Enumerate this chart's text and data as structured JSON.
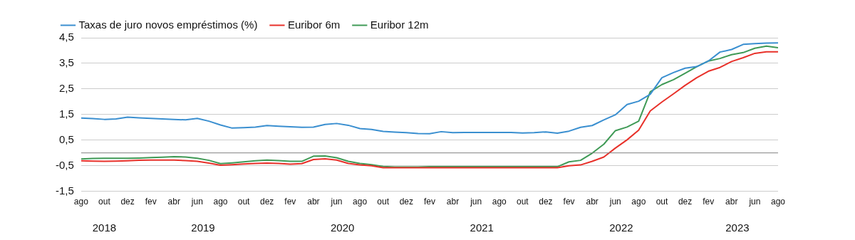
{
  "chart_data": {
    "type": "line",
    "x": [
      "2018-08",
      "2018-09",
      "2018-10",
      "2018-11",
      "2018-12",
      "2019-01",
      "2019-02",
      "2019-03",
      "2019-04",
      "2019-05",
      "2019-06",
      "2019-07",
      "2019-08",
      "2019-09",
      "2019-10",
      "2019-11",
      "2019-12",
      "2020-01",
      "2020-02",
      "2020-03",
      "2020-04",
      "2020-05",
      "2020-06",
      "2020-07",
      "2020-08",
      "2020-09",
      "2020-10",
      "2020-11",
      "2020-12",
      "2021-01",
      "2021-02",
      "2021-03",
      "2021-04",
      "2021-05",
      "2021-06",
      "2021-07",
      "2021-08",
      "2021-09",
      "2021-10",
      "2021-11",
      "2021-12",
      "2022-01",
      "2022-02",
      "2022-03",
      "2022-04",
      "2022-05",
      "2022-06",
      "2022-07",
      "2022-08",
      "2022-09",
      "2022-10",
      "2022-11",
      "2022-12",
      "2023-01",
      "2023-02",
      "2023-03",
      "2023-04",
      "2023-05",
      "2023-06",
      "2023-07",
      "2023-08"
    ],
    "xticks": [
      {
        "value": "2018-08",
        "label": "ago"
      },
      {
        "value": "2018-10",
        "label": "out"
      },
      {
        "value": "2018-12",
        "label": "dez"
      },
      {
        "value": "2019-02",
        "label": "fev"
      },
      {
        "value": "2019-04",
        "label": "abr"
      },
      {
        "value": "2019-06",
        "label": "jun"
      },
      {
        "value": "2019-08",
        "label": "ago"
      },
      {
        "value": "2019-10",
        "label": "out"
      },
      {
        "value": "2019-12",
        "label": "dez"
      },
      {
        "value": "2020-02",
        "label": "fev"
      },
      {
        "value": "2020-04",
        "label": "abr"
      },
      {
        "value": "2020-06",
        "label": "jun"
      },
      {
        "value": "2020-08",
        "label": "ago"
      },
      {
        "value": "2020-10",
        "label": "out"
      },
      {
        "value": "2020-12",
        "label": "dez"
      },
      {
        "value": "2021-02",
        "label": "fev"
      },
      {
        "value": "2021-04",
        "label": "abr"
      },
      {
        "value": "2021-06",
        "label": "jun"
      },
      {
        "value": "2021-08",
        "label": "ago"
      },
      {
        "value": "2021-10",
        "label": "out"
      },
      {
        "value": "2021-12",
        "label": "dez"
      },
      {
        "value": "2022-02",
        "label": "fev"
      },
      {
        "value": "2022-04",
        "label": "abr"
      },
      {
        "value": "2022-06",
        "label": "jun"
      },
      {
        "value": "2022-08",
        "label": "ago"
      },
      {
        "value": "2022-10",
        "label": "out"
      },
      {
        "value": "2022-12",
        "label": "dez"
      },
      {
        "value": "2023-02",
        "label": "fev"
      },
      {
        "value": "2023-04",
        "label": "abr"
      },
      {
        "value": "2023-06",
        "label": "jun"
      },
      {
        "value": "2023-08",
        "label": "ago"
      }
    ],
    "ylim": [
      -1.5,
      4.5
    ],
    "yticks": [
      {
        "value": -1.5,
        "label": "-1,5"
      },
      {
        "value": -0.5,
        "label": "-0,5"
      },
      {
        "value": 0.5,
        "label": "0,5"
      },
      {
        "value": 1.5,
        "label": "1,5"
      },
      {
        "value": 2.5,
        "label": "2,5"
      },
      {
        "value": 3.5,
        "label": "3,5"
      },
      {
        "value": 4.5,
        "label": "4,5"
      }
    ],
    "grid": "y",
    "legend": "top left",
    "marker": "none",
    "line_style": "solid",
    "ref_lines": [
      {
        "axis": "y",
        "value": 0,
        "color": "#808080"
      }
    ],
    "annotations": [
      "2018",
      "2019",
      "2020",
      "2021",
      "2022",
      "2023"
    ],
    "xlim": [
      "2018-08",
      "2023-08"
    ],
    "series": [
      {
        "name": "Taxas de juro novos empréstimos (%)",
        "color": "#3a8fd0",
        "values": [
          1.36,
          1.34,
          1.31,
          1.33,
          1.4,
          1.37,
          1.35,
          1.33,
          1.31,
          1.29,
          1.35,
          1.24,
          1.09,
          0.97,
          0.99,
          1.01,
          1.07,
          1.04,
          1.02,
          1.0,
          1.01,
          1.11,
          1.15,
          1.08,
          0.95,
          0.92,
          0.84,
          0.81,
          0.79,
          0.76,
          0.75,
          0.83,
          0.79,
          0.8,
          0.8,
          0.8,
          0.8,
          0.8,
          0.78,
          0.79,
          0.82,
          0.77,
          0.85,
          1.0,
          1.07,
          1.29,
          1.49,
          1.89,
          2.02,
          2.29,
          2.94,
          3.14,
          3.31,
          3.37,
          3.59,
          3.94,
          4.04,
          4.24,
          4.27,
          4.29,
          4.3
        ]
      },
      {
        "name": "Euribor 6m",
        "color": "#e8312a",
        "values": [
          -0.31,
          -0.32,
          -0.33,
          -0.32,
          -0.31,
          -0.29,
          -0.28,
          -0.28,
          -0.28,
          -0.3,
          -0.33,
          -0.4,
          -0.48,
          -0.46,
          -0.43,
          -0.41,
          -0.4,
          -0.41,
          -0.44,
          -0.42,
          -0.26,
          -0.23,
          -0.28,
          -0.41,
          -0.47,
          -0.5,
          -0.58,
          -0.58,
          -0.58,
          -0.58,
          -0.58,
          -0.58,
          -0.58,
          -0.58,
          -0.58,
          -0.58,
          -0.58,
          -0.58,
          -0.58,
          -0.58,
          -0.58,
          -0.58,
          -0.5,
          -0.47,
          -0.33,
          -0.16,
          0.19,
          0.51,
          0.89,
          1.64,
          1.99,
          2.31,
          2.64,
          2.94,
          3.19,
          3.34,
          3.57,
          3.72,
          3.89,
          3.95,
          3.95
        ]
      },
      {
        "name": "Euribor 12m",
        "color": "#3f9a56",
        "values": [
          -0.24,
          -0.22,
          -0.21,
          -0.21,
          -0.21,
          -0.2,
          -0.18,
          -0.17,
          -0.15,
          -0.16,
          -0.21,
          -0.29,
          -0.42,
          -0.39,
          -0.35,
          -0.31,
          -0.28,
          -0.3,
          -0.33,
          -0.33,
          -0.13,
          -0.12,
          -0.19,
          -0.33,
          -0.41,
          -0.46,
          -0.53,
          -0.55,
          -0.55,
          -0.55,
          -0.54,
          -0.54,
          -0.54,
          -0.54,
          -0.54,
          -0.54,
          -0.54,
          -0.54,
          -0.54,
          -0.54,
          -0.54,
          -0.54,
          -0.35,
          -0.29,
          -0.01,
          0.34,
          0.87,
          1.01,
          1.24,
          2.39,
          2.67,
          2.86,
          3.11,
          3.37,
          3.59,
          3.69,
          3.84,
          3.92,
          4.09,
          4.17,
          4.11
        ]
      }
    ]
  }
}
